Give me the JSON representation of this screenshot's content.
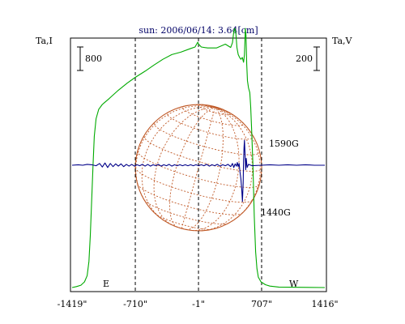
{
  "chart_data": {
    "type": "line",
    "title": "sun: 2006/06/14: 3.64[cm]",
    "left_axis_label": "Ta,I",
    "right_axis_label": "Ta,V",
    "left_scale_value": "800",
    "right_scale_value": "200",
    "x_ticks": [
      "-1419\"",
      "-710\"",
      "-1\"",
      "707\"",
      "1416\""
    ],
    "x_tick_values": [
      -1419,
      -710,
      -1,
      707,
      1416
    ],
    "xlim": [
      -1419,
      1416
    ],
    "limb_labels": {
      "east": "E",
      "west": "W"
    },
    "limb_positions": [
      -710,
      707
    ],
    "annotations": [
      "1590G",
      "1440G"
    ],
    "colors": {
      "intensity": "#00aa00",
      "polarization": "#000088",
      "disk_grid": "#c05a28",
      "frame": "#000000",
      "title": "#000066"
    },
    "series": [
      {
        "key": "intensity",
        "color": "#00aa00",
        "points": [
          [
            -1419,
            0
          ],
          [
            -1370,
            2
          ],
          [
            -1320,
            5
          ],
          [
            -1280,
            12
          ],
          [
            -1250,
            25
          ],
          [
            -1230,
            55
          ],
          [
            -1215,
            110
          ],
          [
            -1200,
            180
          ],
          [
            -1185,
            255
          ],
          [
            -1170,
            318
          ],
          [
            -1150,
            355
          ],
          [
            -1120,
            375
          ],
          [
            -1080,
            385
          ],
          [
            -1000,
            398
          ],
          [
            -900,
            415
          ],
          [
            -800,
            430
          ],
          [
            -710,
            442
          ],
          [
            -600,
            455
          ],
          [
            -500,
            468
          ],
          [
            -400,
            480
          ],
          [
            -300,
            490
          ],
          [
            -200,
            495
          ],
          [
            -100,
            502
          ],
          [
            -40,
            506
          ],
          [
            -10,
            516
          ],
          [
            0,
            512
          ],
          [
            30,
            506
          ],
          [
            100,
            504
          ],
          [
            200,
            504
          ],
          [
            300,
            512
          ],
          [
            360,
            505
          ],
          [
            380,
            515
          ],
          [
            395,
            538
          ],
          [
            405,
            545
          ],
          [
            418,
            534
          ],
          [
            430,
            505
          ],
          [
            445,
            490
          ],
          [
            460,
            484
          ],
          [
            475,
            480
          ],
          [
            490,
            484
          ],
          [
            505,
            474
          ],
          [
            515,
            490
          ],
          [
            525,
            545
          ],
          [
            532,
            530
          ],
          [
            540,
            470
          ],
          [
            548,
            435
          ],
          [
            560,
            420
          ],
          [
            575,
            410
          ],
          [
            585,
            380
          ],
          [
            595,
            335
          ],
          [
            610,
            255
          ],
          [
            625,
            150
          ],
          [
            640,
            75
          ],
          [
            655,
            40
          ],
          [
            670,
            22
          ],
          [
            700,
            12
          ],
          [
            750,
            6
          ],
          [
            800,
            3
          ],
          [
            900,
            1
          ],
          [
            1416,
            0
          ]
        ]
      },
      {
        "key": "polarization",
        "color": "#000088",
        "points": [
          [
            -1419,
            0
          ],
          [
            -1350,
            1
          ],
          [
            -1300,
            0
          ],
          [
            -1250,
            2
          ],
          [
            -1200,
            1
          ],
          [
            -1150,
            -1
          ],
          [
            -1110,
            4
          ],
          [
            -1080,
            -4
          ],
          [
            -1050,
            5
          ],
          [
            -1020,
            -5
          ],
          [
            -990,
            4
          ],
          [
            -960,
            -3
          ],
          [
            -930,
            3
          ],
          [
            -900,
            -2
          ],
          [
            -870,
            3
          ],
          [
            -840,
            -3
          ],
          [
            -810,
            2
          ],
          [
            -780,
            -2
          ],
          [
            -750,
            2
          ],
          [
            -720,
            -2
          ],
          [
            -690,
            1
          ],
          [
            -660,
            -1
          ],
          [
            -630,
            2
          ],
          [
            -600,
            -2
          ],
          [
            -570,
            2
          ],
          [
            -540,
            -2
          ],
          [
            -510,
            1
          ],
          [
            -480,
            -1
          ],
          [
            -450,
            2
          ],
          [
            -420,
            -2
          ],
          [
            -390,
            1
          ],
          [
            -360,
            -1
          ],
          [
            -330,
            2
          ],
          [
            -300,
            -2
          ],
          [
            -270,
            1
          ],
          [
            -240,
            -1
          ],
          [
            -210,
            1
          ],
          [
            -180,
            -1
          ],
          [
            -150,
            1
          ],
          [
            -120,
            -1
          ],
          [
            -90,
            1
          ],
          [
            -60,
            -1
          ],
          [
            -30,
            1
          ],
          [
            0,
            -1
          ],
          [
            30,
            1
          ],
          [
            60,
            -1
          ],
          [
            90,
            2
          ],
          [
            120,
            -2
          ],
          [
            150,
            1
          ],
          [
            180,
            -1
          ],
          [
            210,
            2
          ],
          [
            240,
            -2
          ],
          [
            270,
            1
          ],
          [
            300,
            -1
          ],
          [
            330,
            2
          ],
          [
            360,
            -3
          ],
          [
            380,
            4
          ],
          [
            395,
            -5
          ],
          [
            410,
            3
          ],
          [
            425,
            -2
          ],
          [
            435,
            6
          ],
          [
            445,
            -3
          ],
          [
            455,
            4
          ],
          [
            465,
            -15
          ],
          [
            475,
            -30
          ],
          [
            485,
            -55
          ],
          [
            492,
            -80
          ],
          [
            500,
            -40
          ],
          [
            505,
            10
          ],
          [
            510,
            40
          ],
          [
            515,
            55
          ],
          [
            520,
            30
          ],
          [
            528,
            -10
          ],
          [
            535,
            15
          ],
          [
            545,
            -5
          ],
          [
            560,
            2
          ],
          [
            600,
            -1
          ],
          [
            700,
            0
          ],
          [
            800,
            1
          ],
          [
            900,
            0
          ],
          [
            1000,
            1
          ],
          [
            1100,
            0
          ],
          [
            1200,
            1
          ],
          [
            1300,
            0
          ],
          [
            1416,
            0
          ]
        ]
      }
    ]
  }
}
